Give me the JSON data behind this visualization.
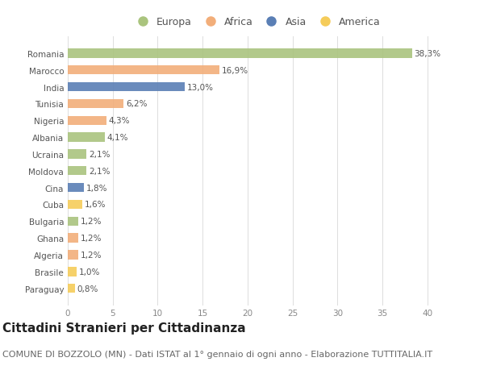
{
  "categories": [
    "Romania",
    "Marocco",
    "India",
    "Tunisia",
    "Nigeria",
    "Albania",
    "Ucraina",
    "Moldova",
    "Cina",
    "Cuba",
    "Bulgaria",
    "Ghana",
    "Algeria",
    "Brasile",
    "Paraguay"
  ],
  "values": [
    38.3,
    16.9,
    13.0,
    6.2,
    4.3,
    4.1,
    2.1,
    2.1,
    1.8,
    1.6,
    1.2,
    1.2,
    1.2,
    1.0,
    0.8
  ],
  "labels": [
    "38,3%",
    "16,9%",
    "13,0%",
    "6,2%",
    "4,3%",
    "4,1%",
    "2,1%",
    "2,1%",
    "1,8%",
    "1,6%",
    "1,2%",
    "1,2%",
    "1,2%",
    "1,0%",
    "0,8%"
  ],
  "continent": [
    "Europa",
    "Africa",
    "Asia",
    "Africa",
    "Africa",
    "Europa",
    "Europa",
    "Europa",
    "Asia",
    "America",
    "Europa",
    "Africa",
    "Africa",
    "America",
    "America"
  ],
  "colors": {
    "Europa": "#aac47e",
    "Africa": "#f2ae7a",
    "Asia": "#5a7fb5",
    "America": "#f5cc5a"
  },
  "legend_order": [
    "Europa",
    "Africa",
    "Asia",
    "America"
  ],
  "legend_colors": [
    "#aac47e",
    "#f2ae7a",
    "#5a7fb5",
    "#f5cc5a"
  ],
  "xlim": [
    0,
    42
  ],
  "xticks": [
    0,
    5,
    10,
    15,
    20,
    25,
    30,
    35,
    40
  ],
  "title": "Cittadini Stranieri per Cittadinanza",
  "subtitle": "COMUNE DI BOZZOLO (MN) - Dati ISTAT al 1° gennaio di ogni anno - Elaborazione TUTTITALIA.IT",
  "background_color": "#ffffff",
  "bar_height": 0.55,
  "title_fontsize": 11,
  "subtitle_fontsize": 8,
  "label_fontsize": 7.5,
  "tick_fontsize": 7.5,
  "legend_fontsize": 9
}
